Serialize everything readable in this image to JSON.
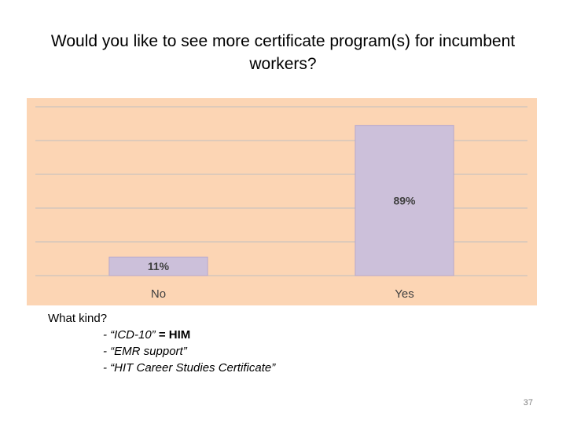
{
  "slide": {
    "title": "Would you like to see more certificate program(s) for incumbent workers?",
    "page_number": "37"
  },
  "notes": {
    "heading": "What kind?",
    "items": [
      {
        "prefix": "- ",
        "text": "“ICD-10”",
        "suffix": " = HIM"
      },
      {
        "prefix": "- ",
        "text": "“EMR support”",
        "suffix": ""
      },
      {
        "prefix": "- ",
        "text": "“HIT Career Studies Certificate”",
        "suffix": ""
      }
    ]
  },
  "chart_data": {
    "type": "bar",
    "title": "Would you like to see more certificate program(s) for incumbent workers?",
    "xlabel": "",
    "ylabel": "",
    "categories": [
      "No",
      "Yes"
    ],
    "values": [
      11,
      89
    ],
    "data_labels": [
      "11%",
      "89%"
    ],
    "ylim": [
      0,
      100
    ],
    "grid": true,
    "legend": "none",
    "colors": {
      "bar": "#ccc0da",
      "bar_stroke": "#b7a8cc",
      "plot_background": "#fcd5b4",
      "gridline": "#bfbfbf",
      "label": "#404040"
    }
  }
}
